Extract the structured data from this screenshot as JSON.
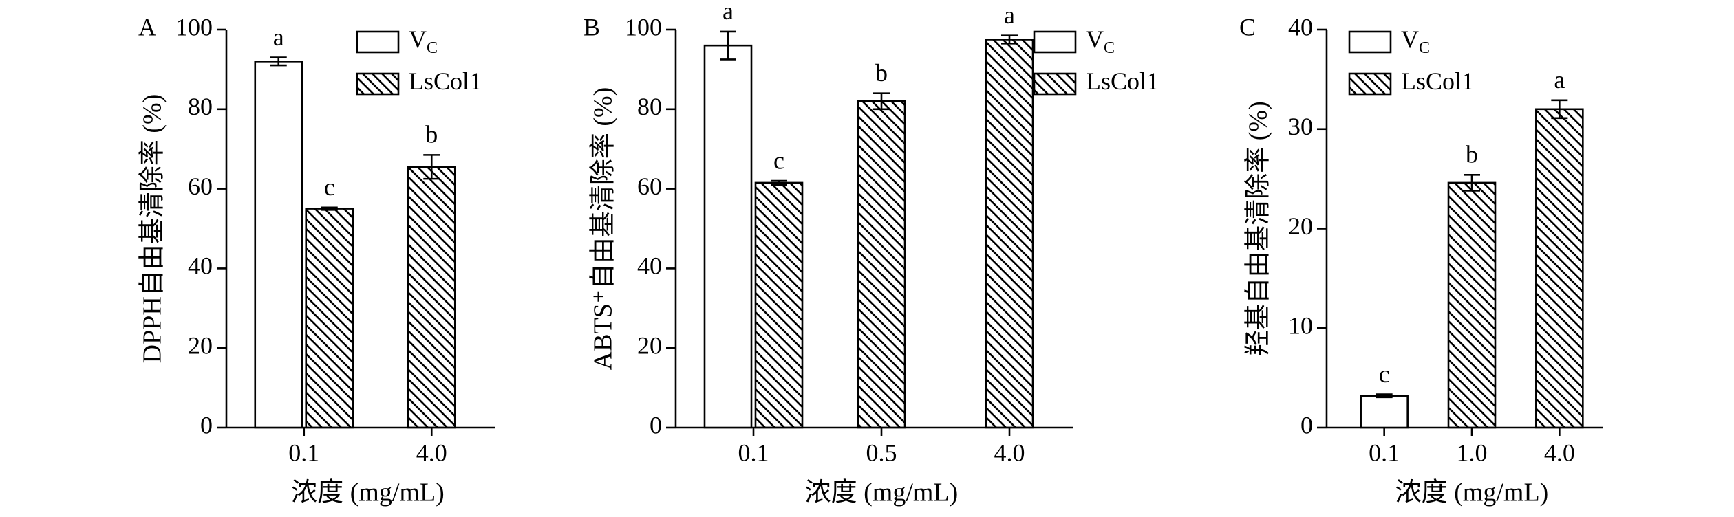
{
  "chart_data": [
    {
      "type": "bar",
      "panel": "A",
      "ylabel": "DPPH自由基清除率 (%)",
      "xlabel": "浓度 (mg/mL)",
      "categories": [
        "0.1",
        "4.0"
      ],
      "ylim": [
        0,
        100
      ],
      "yticks": [
        0,
        20,
        40,
        60,
        80,
        100
      ],
      "series": [
        {
          "name": "V",
          "name_sub": "C",
          "color": "#ffffff",
          "hatch": false,
          "values": [
            92,
            null
          ],
          "errors": [
            1,
            null
          ],
          "letters": [
            "a",
            null
          ]
        },
        {
          "name": "LsCol1",
          "color": "#000000",
          "hatch": true,
          "values": [
            55,
            65.5
          ],
          "errors": [
            0.3,
            3
          ],
          "letters": [
            "c",
            "b"
          ]
        }
      ]
    },
    {
      "type": "bar",
      "panel": "B",
      "ylabel": "ABTS⁺自由基清除率 (%)",
      "xlabel": "浓度 (mg/mL)",
      "categories": [
        "0.1",
        "0.5",
        "4.0"
      ],
      "ylim": [
        0,
        100
      ],
      "yticks": [
        0,
        20,
        40,
        60,
        80,
        100
      ],
      "series": [
        {
          "name": "V",
          "name_sub": "C",
          "color": "#ffffff",
          "hatch": false,
          "values": [
            96,
            null,
            null
          ],
          "errors": [
            3.5,
            null,
            null
          ],
          "letters": [
            "a",
            null,
            null
          ]
        },
        {
          "name": "LsCol1",
          "color": "#000000",
          "hatch": true,
          "values": [
            61.5,
            82,
            97.5
          ],
          "errors": [
            0.5,
            2,
            1
          ],
          "letters": [
            "c",
            "b",
            "a"
          ]
        }
      ]
    },
    {
      "type": "bar",
      "panel": "C",
      "ylabel": "羟基自由基清除率 (%)",
      "xlabel": "浓度 (mg/mL)",
      "categories": [
        "0.1",
        "1.0",
        "4.0"
      ],
      "ylim": [
        0,
        40
      ],
      "yticks": [
        0,
        10,
        20,
        30,
        40
      ],
      "series": [
        {
          "name": "V",
          "name_sub": "C",
          "color": "#ffffff",
          "hatch": false,
          "values": [
            3.2,
            null,
            null
          ],
          "errors": [
            0.15,
            null,
            null
          ],
          "letters": [
            "c",
            null,
            null
          ]
        },
        {
          "name": "LsCol1",
          "color": "#000000",
          "hatch": true,
          "values": [
            null,
            24.6,
            32
          ],
          "errors": [
            null,
            0.8,
            0.9
          ],
          "letters": [
            null,
            "b",
            "a"
          ]
        }
      ]
    }
  ]
}
